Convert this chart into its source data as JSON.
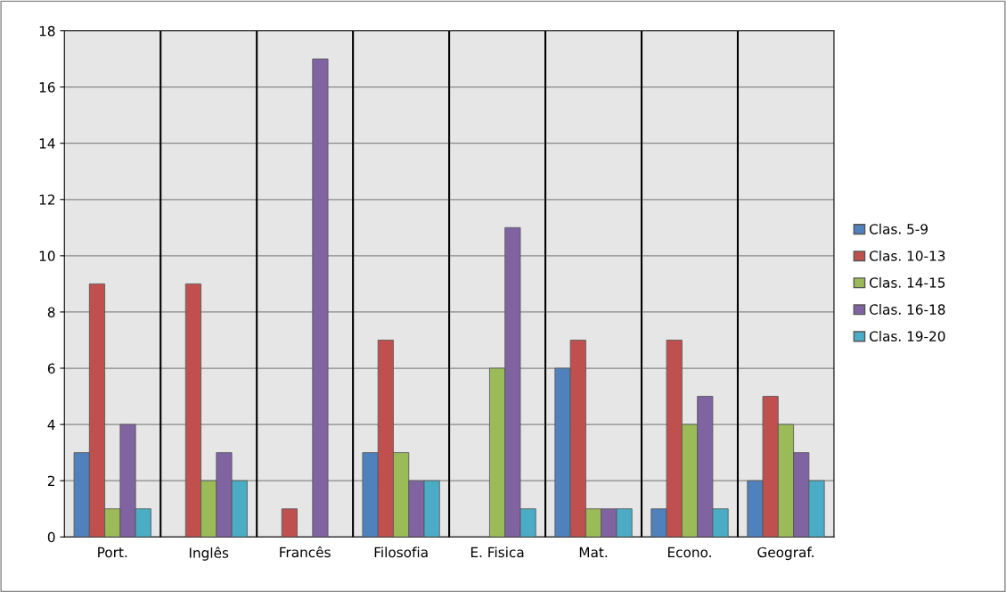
{
  "chart_data": {
    "type": "bar",
    "categories": [
      "Port.",
      "Inglês",
      "Francês",
      "Filosofia",
      "E. Fisica",
      "Mat.",
      "Econo.",
      "Geograf."
    ],
    "series": [
      {
        "name": "Clas. 5-9",
        "color": "#4f81bd",
        "values": [
          3,
          0,
          0,
          3,
          0,
          6,
          1,
          2
        ]
      },
      {
        "name": "Clas. 10-13",
        "color": "#c0504d",
        "values": [
          9,
          9,
          1,
          7,
          0,
          7,
          7,
          5
        ]
      },
      {
        "name": "Clas. 14-15",
        "color": "#9bbb59",
        "values": [
          1,
          2,
          0,
          3,
          6,
          1,
          4,
          4
        ]
      },
      {
        "name": "Clas. 16-18",
        "color": "#8064a2",
        "values": [
          4,
          3,
          17,
          2,
          11,
          1,
          5,
          3
        ]
      },
      {
        "name": "Clas. 19-20",
        "color": "#4bacc6",
        "values": [
          1,
          2,
          0,
          2,
          1,
          1,
          1,
          2
        ]
      }
    ],
    "ylim": [
      0,
      18
    ],
    "yticks": [
      0,
      2,
      4,
      6,
      8,
      10,
      12,
      14,
      16,
      18
    ],
    "grid": true,
    "legend": "right"
  }
}
